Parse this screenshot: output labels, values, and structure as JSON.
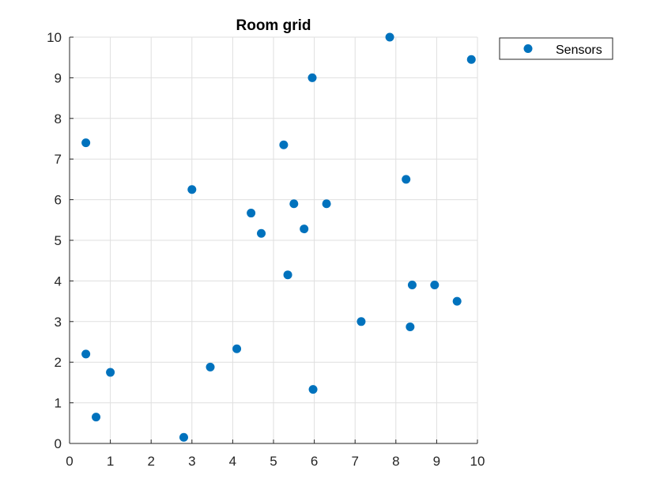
{
  "chart_data": {
    "type": "scatter",
    "title": "Room grid",
    "xlabel": "",
    "ylabel": "",
    "xlim": [
      0,
      10
    ],
    "ylim": [
      0,
      10
    ],
    "xticks": [
      "0",
      "1",
      "2",
      "3",
      "4",
      "5",
      "6",
      "7",
      "8",
      "9",
      "10"
    ],
    "yticks": [
      "0",
      "1",
      "2",
      "3",
      "4",
      "5",
      "6",
      "7",
      "8",
      "9",
      "10"
    ],
    "grid": true,
    "legend_position": "outside-top-right",
    "series": [
      {
        "name": "Sensors",
        "color": "#0072BD",
        "marker": "filled-circle",
        "points": [
          {
            "x": 0.4,
            "y": 7.4
          },
          {
            "x": 0.4,
            "y": 2.2
          },
          {
            "x": 0.65,
            "y": 0.65
          },
          {
            "x": 1.0,
            "y": 1.75
          },
          {
            "x": 2.8,
            "y": 0.15
          },
          {
            "x": 3.0,
            "y": 6.25
          },
          {
            "x": 3.45,
            "y": 1.88
          },
          {
            "x": 4.1,
            "y": 2.33
          },
          {
            "x": 4.45,
            "y": 5.67
          },
          {
            "x": 4.7,
            "y": 5.17
          },
          {
            "x": 5.25,
            "y": 7.35
          },
          {
            "x": 5.35,
            "y": 4.15
          },
          {
            "x": 5.5,
            "y": 5.9
          },
          {
            "x": 5.75,
            "y": 5.28
          },
          {
            "x": 5.95,
            "y": 9.0
          },
          {
            "x": 5.97,
            "y": 1.33
          },
          {
            "x": 6.3,
            "y": 5.9
          },
          {
            "x": 7.15,
            "y": 3.0
          },
          {
            "x": 7.85,
            "y": 10.0
          },
          {
            "x": 8.25,
            "y": 6.5
          },
          {
            "x": 8.35,
            "y": 2.87
          },
          {
            "x": 8.4,
            "y": 3.9
          },
          {
            "x": 8.95,
            "y": 3.9
          },
          {
            "x": 9.5,
            "y": 3.5
          },
          {
            "x": 9.85,
            "y": 9.45
          }
        ]
      }
    ]
  }
}
